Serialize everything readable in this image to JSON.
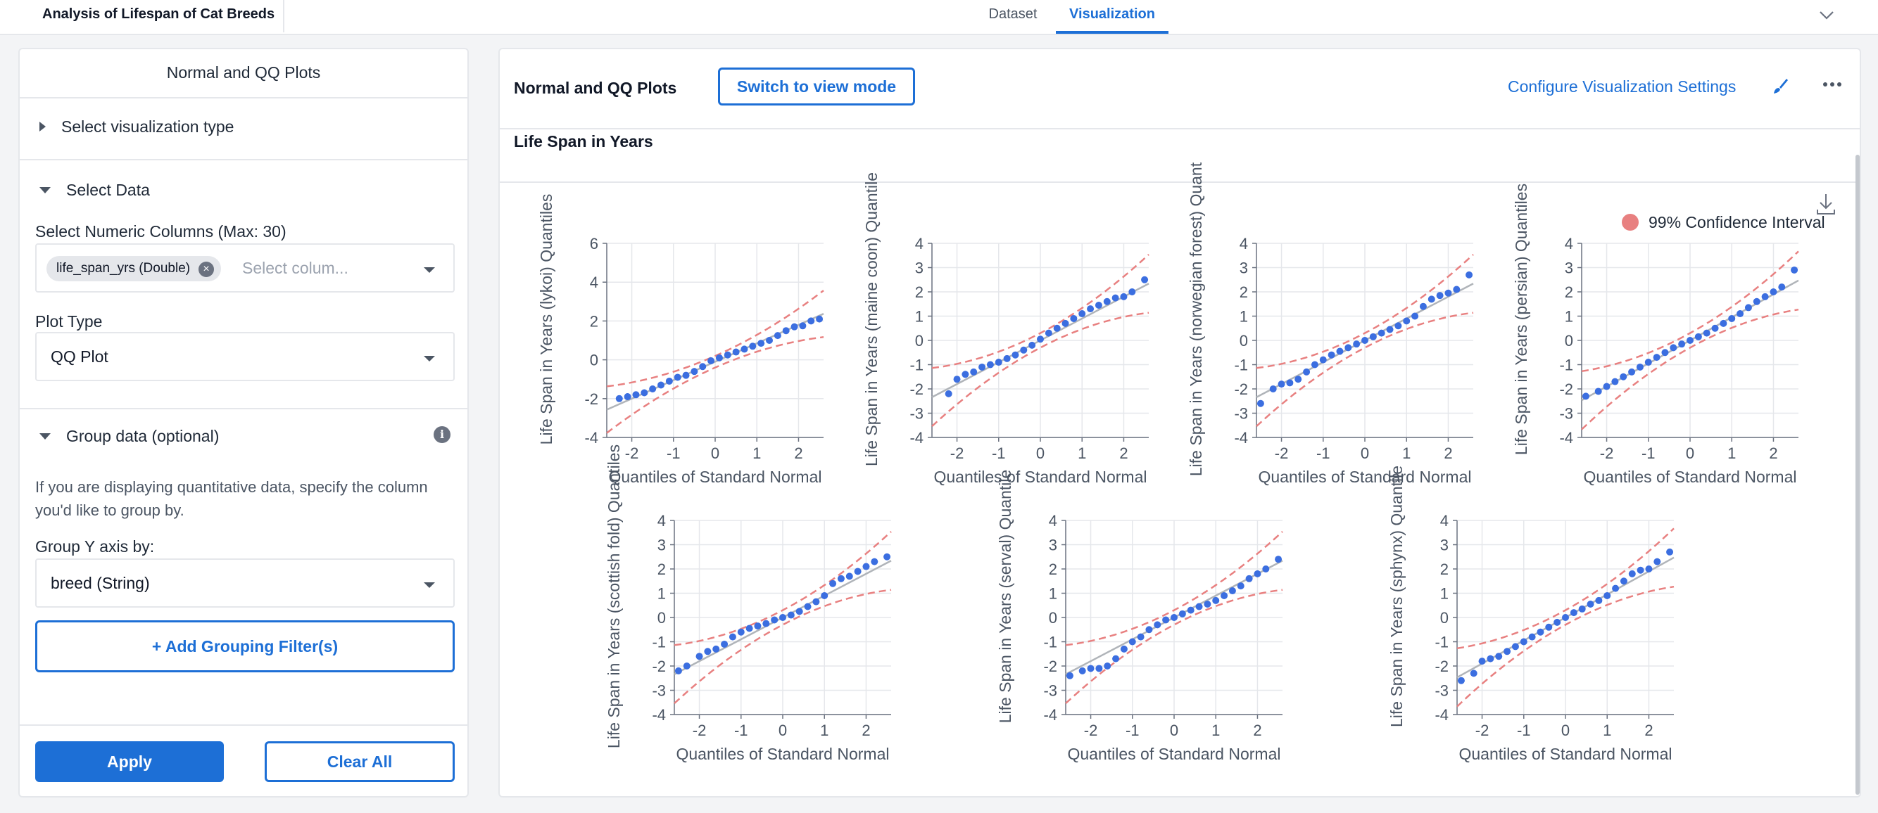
{
  "app": {
    "title": "Analysis of Lifespan of Cat Breeds"
  },
  "tabs": [
    {
      "label": "Dataset",
      "active": false
    },
    {
      "label": "Visualization",
      "active": true
    }
  ],
  "left_panel": {
    "title": "Normal and QQ Plots",
    "sections": {
      "viz_type": "Select visualization type",
      "select_data": "Select Data",
      "group_data": "Group data (optional)"
    },
    "numeric_columns": {
      "label": "Select Numeric Columns (Max: 30)",
      "chip": "life_span_yrs (Double)",
      "placeholder": "Select colum..."
    },
    "plot_type": {
      "label": "Plot Type",
      "value": "QQ Plot"
    },
    "help_text": "If you are displaying quantitative data, specify the column you'd like to group by.",
    "group_y": {
      "label": "Group Y axis by:",
      "value": "breed (String)"
    },
    "add_filter_label": "+ Add Grouping Filter(s)",
    "apply_label": "Apply",
    "clear_label": "Clear All"
  },
  "viz_panel": {
    "title": "Normal and QQ Plots",
    "switch_label": "Switch to view mode",
    "config_label": "Configure Visualization Settings",
    "chart_title": "Life Span in Years",
    "legend_label": "99% Confidence Interval"
  },
  "colors": {
    "accent": "#1d6fd6",
    "points": "#3b6ee0",
    "ci": "#e88080",
    "fit": "#b0b4b9"
  },
  "chart_data": [
    {
      "type": "scatter",
      "ylabel": "Life Span in Years (lykoi) Quantiles",
      "xlabel": "Quantiles of Standard Normal",
      "xlim": [
        -2.6,
        2.6
      ],
      "ylim": [
        -4,
        6
      ],
      "yticks": [
        -4,
        -2,
        0,
        2,
        4,
        6
      ],
      "xticks": [
        -2,
        -1,
        0,
        1,
        2
      ],
      "fit": {
        "slope": 0.95,
        "intercept": -0.1
      },
      "ci_halfwidth": [
        0.3,
        1.2
      ],
      "points": [
        [
          -2.3,
          -2
        ],
        [
          -2.1,
          -1.9
        ],
        [
          -1.9,
          -1.8
        ],
        [
          -1.7,
          -1.7
        ],
        [
          -1.5,
          -1.5
        ],
        [
          -1.3,
          -1.3
        ],
        [
          -1.1,
          -1.1
        ],
        [
          -0.9,
          -0.9
        ],
        [
          -0.7,
          -0.8
        ],
        [
          -0.5,
          -0.6
        ],
        [
          -0.3,
          -0.35
        ],
        [
          -0.1,
          -0.05
        ],
        [
          0.1,
          0.1
        ],
        [
          0.3,
          0.25
        ],
        [
          0.5,
          0.4
        ],
        [
          0.7,
          0.55
        ],
        [
          0.9,
          0.7
        ],
        [
          1.1,
          0.85
        ],
        [
          1.3,
          1.0
        ],
        [
          1.5,
          1.25
        ],
        [
          1.7,
          1.5
        ],
        [
          1.9,
          1.7
        ],
        [
          2.1,
          1.75
        ],
        [
          2.3,
          2.0
        ],
        [
          2.5,
          2.1
        ]
      ]
    },
    {
      "type": "scatter",
      "ylabel": "Life Span in Years (maine coon) Quantile",
      "xlabel": "Quantiles of Standard Normal",
      "xlim": [
        -2.6,
        2.6
      ],
      "ylim": [
        -4,
        4
      ],
      "yticks": [
        -4,
        -3,
        -2,
        -1,
        0,
        1,
        2,
        3,
        4
      ],
      "xticks": [
        -2,
        -1,
        0,
        1,
        2
      ],
      "fit": {
        "slope": 0.9,
        "intercept": 0
      },
      "ci_halfwidth": [
        0.3,
        1.2
      ],
      "points": [
        [
          -2.2,
          -2.2
        ],
        [
          -2.0,
          -1.6
        ],
        [
          -1.8,
          -1.4
        ],
        [
          -1.6,
          -1.3
        ],
        [
          -1.4,
          -1.1
        ],
        [
          -1.2,
          -1.0
        ],
        [
          -1.0,
          -0.9
        ],
        [
          -0.8,
          -0.75
        ],
        [
          -0.6,
          -0.6
        ],
        [
          -0.4,
          -0.4
        ],
        [
          -0.2,
          -0.2
        ],
        [
          0.0,
          0.05
        ],
        [
          0.2,
          0.3
        ],
        [
          0.4,
          0.5
        ],
        [
          0.6,
          0.7
        ],
        [
          0.8,
          0.9
        ],
        [
          1.0,
          1.1
        ],
        [
          1.2,
          1.3
        ],
        [
          1.4,
          1.45
        ],
        [
          1.6,
          1.6
        ],
        [
          1.8,
          1.75
        ],
        [
          2.0,
          1.8
        ],
        [
          2.2,
          2.0
        ],
        [
          2.5,
          2.5
        ]
      ]
    },
    {
      "type": "scatter",
      "ylabel": "Life Span in Years (norwegian forest) Quant",
      "xlabel": "Quantiles of Standard Normal",
      "xlim": [
        -2.6,
        2.6
      ],
      "ylim": [
        -4,
        4
      ],
      "yticks": [
        -4,
        -3,
        -2,
        -1,
        0,
        1,
        2,
        3,
        4
      ],
      "xticks": [
        -2,
        -1,
        0,
        1,
        2
      ],
      "fit": {
        "slope": 0.9,
        "intercept": 0
      },
      "ci_halfwidth": [
        0.3,
        1.2
      ],
      "points": [
        [
          -2.5,
          -2.6
        ],
        [
          -2.2,
          -2.0
        ],
        [
          -2.0,
          -1.8
        ],
        [
          -1.8,
          -1.75
        ],
        [
          -1.6,
          -1.6
        ],
        [
          -1.4,
          -1.3
        ],
        [
          -1.2,
          -1.0
        ],
        [
          -1.0,
          -0.8
        ],
        [
          -0.8,
          -0.6
        ],
        [
          -0.6,
          -0.45
        ],
        [
          -0.4,
          -0.3
        ],
        [
          -0.2,
          -0.15
        ],
        [
          0.0,
          0.0
        ],
        [
          0.2,
          0.15
        ],
        [
          0.4,
          0.3
        ],
        [
          0.6,
          0.45
        ],
        [
          0.8,
          0.6
        ],
        [
          1.0,
          0.8
        ],
        [
          1.2,
          1.0
        ],
        [
          1.4,
          1.4
        ],
        [
          1.6,
          1.7
        ],
        [
          1.8,
          1.85
        ],
        [
          2.0,
          1.95
        ],
        [
          2.2,
          2.1
        ],
        [
          2.5,
          2.7
        ]
      ]
    },
    {
      "type": "scatter",
      "ylabel": "Life Span in Years (persian) Quantiles",
      "xlabel": "Quantiles of Standard Normal",
      "xlim": [
        -2.6,
        2.6
      ],
      "ylim": [
        -4,
        4
      ],
      "yticks": [
        -4,
        -3,
        -2,
        -1,
        0,
        1,
        2,
        3,
        4
      ],
      "xticks": [
        -2,
        -1,
        0,
        1,
        2
      ],
      "fit": {
        "slope": 0.95,
        "intercept": 0
      },
      "ci_halfwidth": [
        0.3,
        1.2
      ],
      "points": [
        [
          -2.5,
          -2.3
        ],
        [
          -2.2,
          -2.1
        ],
        [
          -2.0,
          -1.9
        ],
        [
          -1.8,
          -1.7
        ],
        [
          -1.6,
          -1.5
        ],
        [
          -1.4,
          -1.3
        ],
        [
          -1.2,
          -1.1
        ],
        [
          -1.0,
          -0.9
        ],
        [
          -0.8,
          -0.7
        ],
        [
          -0.6,
          -0.5
        ],
        [
          -0.4,
          -0.3
        ],
        [
          -0.2,
          -0.15
        ],
        [
          0.0,
          0.0
        ],
        [
          0.2,
          0.15
        ],
        [
          0.4,
          0.3
        ],
        [
          0.6,
          0.5
        ],
        [
          0.8,
          0.7
        ],
        [
          1.0,
          0.9
        ],
        [
          1.2,
          1.1
        ],
        [
          1.4,
          1.35
        ],
        [
          1.6,
          1.6
        ],
        [
          1.8,
          1.8
        ],
        [
          2.0,
          2.0
        ],
        [
          2.2,
          2.2
        ],
        [
          2.5,
          2.9
        ]
      ]
    },
    {
      "type": "scatter",
      "ylabel": "Life Span in Years (scottish fold) Quantiles",
      "xlabel": "Quantiles of Standard Normal",
      "xlim": [
        -2.6,
        2.6
      ],
      "ylim": [
        -4,
        4
      ],
      "yticks": [
        -4,
        -3,
        -2,
        -1,
        0,
        1,
        2,
        3,
        4
      ],
      "xticks": [
        -2,
        -1,
        0,
        1,
        2
      ],
      "fit": {
        "slope": 0.9,
        "intercept": 0
      },
      "ci_halfwidth": [
        0.3,
        1.2
      ],
      "points": [
        [
          -2.5,
          -2.2
        ],
        [
          -2.3,
          -2.0
        ],
        [
          -2.0,
          -1.6
        ],
        [
          -1.8,
          -1.4
        ],
        [
          -1.6,
          -1.3
        ],
        [
          -1.4,
          -1.1
        ],
        [
          -1.2,
          -0.8
        ],
        [
          -1.0,
          -0.6
        ],
        [
          -0.8,
          -0.45
        ],
        [
          -0.6,
          -0.35
        ],
        [
          -0.4,
          -0.25
        ],
        [
          -0.2,
          -0.1
        ],
        [
          0.0,
          0.0
        ],
        [
          0.2,
          0.1
        ],
        [
          0.4,
          0.25
        ],
        [
          0.6,
          0.45
        ],
        [
          0.8,
          0.65
        ],
        [
          1.0,
          0.9
        ],
        [
          1.2,
          1.4
        ],
        [
          1.4,
          1.6
        ],
        [
          1.6,
          1.7
        ],
        [
          1.8,
          1.9
        ],
        [
          2.0,
          2.1
        ],
        [
          2.2,
          2.3
        ],
        [
          2.5,
          2.5
        ]
      ]
    },
    {
      "type": "scatter",
      "ylabel": "Life Span in Years (serval) Quantile",
      "xlabel": "Quantiles of Standard Normal",
      "xlim": [
        -2.6,
        2.6
      ],
      "ylim": [
        -4,
        4
      ],
      "yticks": [
        -4,
        -3,
        -2,
        -1,
        0,
        1,
        2,
        3,
        4
      ],
      "xticks": [
        -2,
        -1,
        0,
        1,
        2
      ],
      "fit": {
        "slope": 0.9,
        "intercept": 0
      },
      "ci_halfwidth": [
        0.3,
        1.2
      ],
      "points": [
        [
          -2.5,
          -2.4
        ],
        [
          -2.2,
          -2.2
        ],
        [
          -2.0,
          -2.1
        ],
        [
          -1.8,
          -2.1
        ],
        [
          -1.6,
          -2.0
        ],
        [
          -1.4,
          -1.7
        ],
        [
          -1.2,
          -1.3
        ],
        [
          -1.0,
          -1.0
        ],
        [
          -0.8,
          -0.8
        ],
        [
          -0.6,
          -0.5
        ],
        [
          -0.4,
          -0.3
        ],
        [
          -0.2,
          -0.1
        ],
        [
          0.0,
          0.0
        ],
        [
          0.2,
          0.15
        ],
        [
          0.4,
          0.3
        ],
        [
          0.6,
          0.45
        ],
        [
          0.8,
          0.55
        ],
        [
          1.0,
          0.7
        ],
        [
          1.2,
          0.9
        ],
        [
          1.4,
          1.1
        ],
        [
          1.6,
          1.3
        ],
        [
          1.8,
          1.6
        ],
        [
          2.0,
          1.8
        ],
        [
          2.2,
          2.0
        ],
        [
          2.5,
          2.4
        ]
      ]
    },
    {
      "type": "scatter",
      "ylabel": "Life Span in Years (sphynx) Quantile",
      "xlabel": "Quantiles of Standard Normal",
      "xlim": [
        -2.6,
        2.6
      ],
      "ylim": [
        -4,
        4
      ],
      "yticks": [
        -4,
        -3,
        -2,
        -1,
        0,
        1,
        2,
        3,
        4
      ],
      "xticks": [
        -2,
        -1,
        0,
        1,
        2
      ],
      "fit": {
        "slope": 0.95,
        "intercept": 0
      },
      "ci_halfwidth": [
        0.3,
        1.2
      ],
      "points": [
        [
          -2.5,
          -2.6
        ],
        [
          -2.2,
          -2.3
        ],
        [
          -2.0,
          -1.8
        ],
        [
          -1.8,
          -1.7
        ],
        [
          -1.6,
          -1.6
        ],
        [
          -1.4,
          -1.4
        ],
        [
          -1.2,
          -1.2
        ],
        [
          -1.0,
          -1.0
        ],
        [
          -0.8,
          -0.8
        ],
        [
          -0.6,
          -0.6
        ],
        [
          -0.4,
          -0.4
        ],
        [
          -0.2,
          -0.2
        ],
        [
          0.0,
          0.0
        ],
        [
          0.2,
          0.2
        ],
        [
          0.4,
          0.35
        ],
        [
          0.6,
          0.55
        ],
        [
          0.8,
          0.7
        ],
        [
          1.0,
          0.9
        ],
        [
          1.2,
          1.2
        ],
        [
          1.4,
          1.5
        ],
        [
          1.6,
          1.8
        ],
        [
          1.8,
          1.95
        ],
        [
          2.0,
          2.0
        ],
        [
          2.2,
          2.3
        ],
        [
          2.5,
          2.7
        ]
      ]
    }
  ]
}
